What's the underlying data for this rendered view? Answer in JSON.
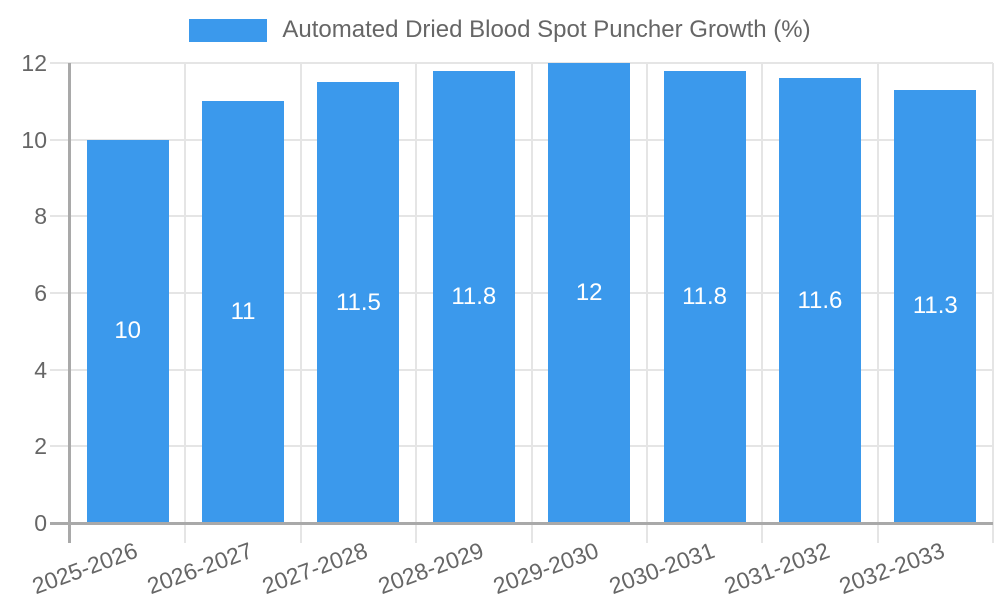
{
  "chart_data": {
    "type": "bar",
    "title": "Automated Dried Blood Spot Puncher Growth (%)",
    "legend": {
      "label": "Automated Dried Blood Spot Puncher Growth (%)",
      "position": "top"
    },
    "categories": [
      "2025-2026",
      "2026-2027",
      "2027-2028",
      "2028-2029",
      "2029-2030",
      "2030-2031",
      "2031-2032",
      "2032-2033"
    ],
    "values": [
      10,
      11,
      11.5,
      11.8,
      12,
      11.8,
      11.6,
      11.3
    ],
    "data_labels": [
      "10",
      "11",
      "11.5",
      "11.8",
      "12",
      "11.8",
      "11.6",
      "11.3"
    ],
    "xlabel": "",
    "ylabel": "",
    "ylim": [
      0,
      12
    ],
    "yticks": [
      0,
      2,
      4,
      6,
      8,
      10,
      12
    ],
    "grid": true,
    "x_tick_rotation_deg": -20,
    "colors": {
      "bar": "#3B99EC",
      "data_label": "#FFFFFF",
      "tick_text": "#666666",
      "legend_text": "#666666",
      "grid_line": "#E5E5E5",
      "axis_line": "#A9A9A9",
      "background": "#FFFFFF"
    }
  }
}
